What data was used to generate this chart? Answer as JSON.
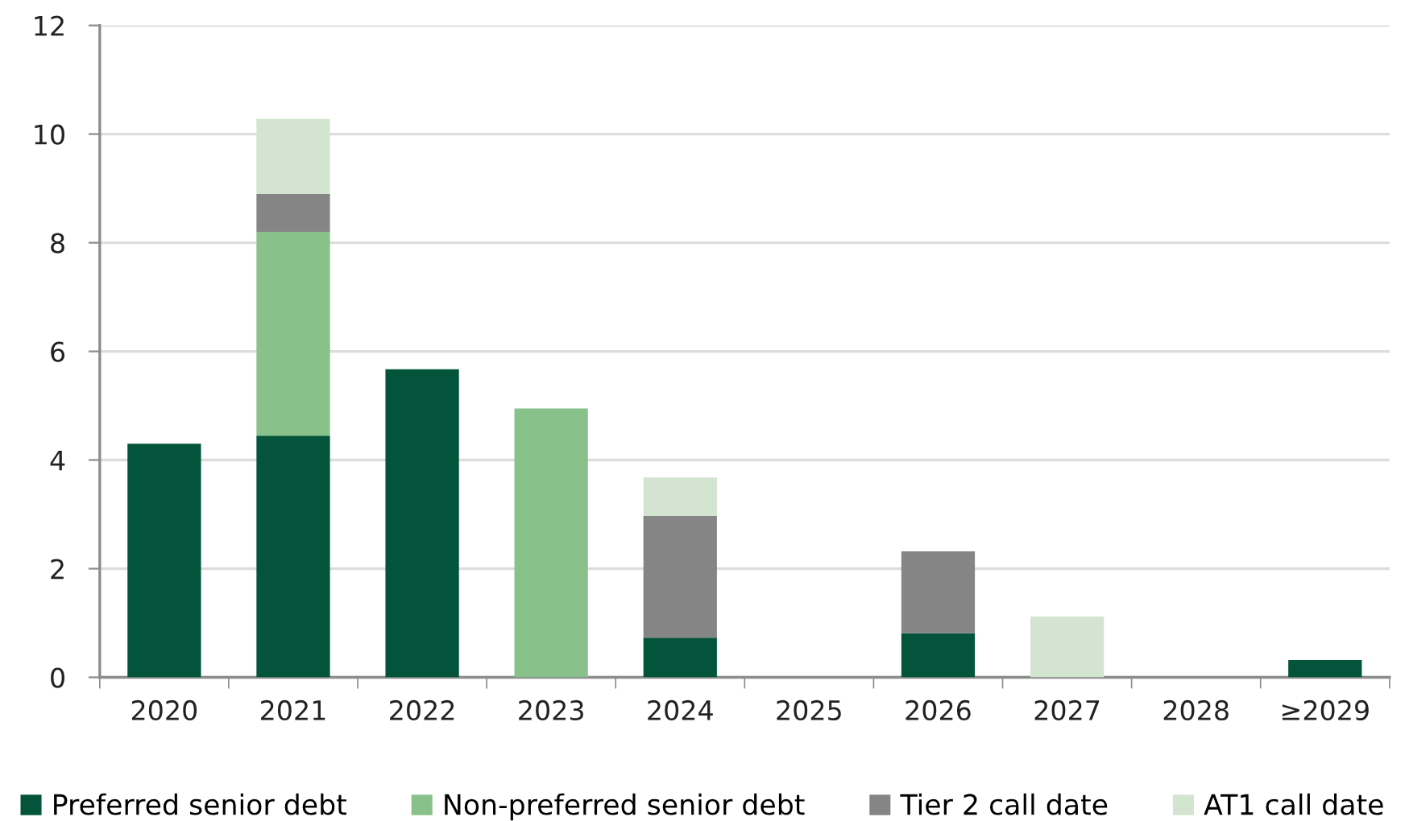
{
  "chart_data": {
    "type": "bar",
    "stacked": true,
    "categories": [
      "2020",
      "2021",
      "2022",
      "2023",
      "2024",
      "2025",
      "2026",
      "2027",
      "2028",
      "≥2029"
    ],
    "series": [
      {
        "name": "Preferred senior debt",
        "color": "#03543a",
        "values": [
          4.3,
          4.45,
          5.67,
          null,
          0.73,
          null,
          0.81,
          null,
          null,
          0.32
        ]
      },
      {
        "name": "Non-preferred senior debt",
        "color": "#88c28a",
        "values": [
          null,
          3.75,
          null,
          4.95,
          null,
          null,
          null,
          null,
          null,
          null
        ]
      },
      {
        "name": "Tier 2 call date",
        "color": "#858585",
        "values": [
          null,
          0.7,
          null,
          null,
          2.24,
          null,
          1.51,
          null,
          null,
          null
        ]
      },
      {
        "name": "AT1 call date",
        "color": "#d3e5d0",
        "values": [
          null,
          1.38,
          null,
          null,
          0.71,
          null,
          null,
          1.12,
          null,
          null
        ]
      }
    ],
    "ylim": [
      0,
      12
    ],
    "yticks": [
      0,
      2,
      4,
      6,
      8,
      10,
      12
    ],
    "grid": "y",
    "legend": "bottom"
  }
}
